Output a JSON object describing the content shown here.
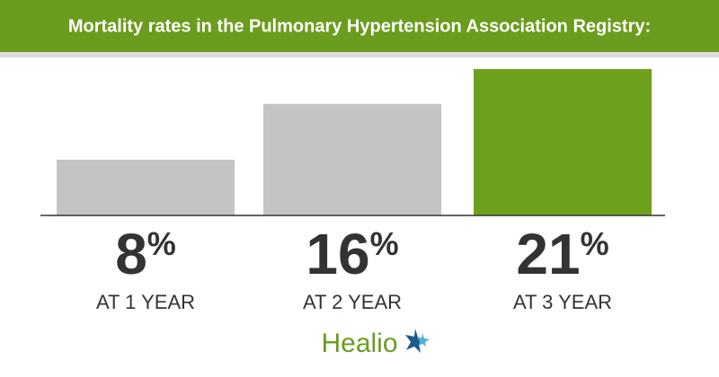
{
  "chart_data": {
    "type": "bar",
    "title": "Mortality rates in the Pulmonary Hypertension Association Registry:",
    "categories": [
      "AT 1 YEAR",
      "AT 2 YEAR",
      "AT 3 YEAR"
    ],
    "values": [
      8,
      16,
      21
    ],
    "value_labels": [
      "8%",
      "16%",
      "21%"
    ],
    "colors": [
      "#c4c4c4",
      "#c4c4c4",
      "#6da11b"
    ],
    "source_logo": "Healio"
  }
}
